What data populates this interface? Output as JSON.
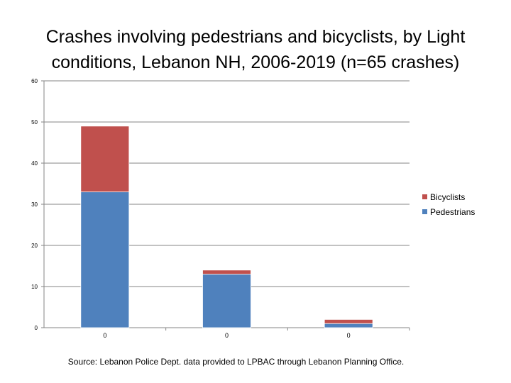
{
  "chart_data": {
    "type": "bar",
    "stacked": true,
    "title": [
      "Crashes involving pedestrians and bicyclists, by Light",
      "conditions, Lebanon NH, 2006-2019 (n=65 crashes)"
    ],
    "categories": [
      "0",
      "0",
      "0"
    ],
    "series": [
      {
        "name": "Pedestrians",
        "color": "#4f81bd",
        "values": [
          33,
          13,
          1
        ]
      },
      {
        "name": "Bicyclists",
        "color": "#c0504d",
        "values": [
          16,
          1,
          1
        ]
      }
    ],
    "ylim": [
      0,
      60
    ],
    "yticks": [
      "0",
      "10",
      "20",
      "30",
      "40",
      "50",
      "60"
    ],
    "legend_order": [
      "Bicyclists",
      "Pedestrians"
    ],
    "legend_position": "right",
    "grid": true,
    "xlabel": "",
    "ylabel": ""
  },
  "source": "Source: Lebanon Police Dept. data provided to LPBAC through Lebanon Planning Office."
}
